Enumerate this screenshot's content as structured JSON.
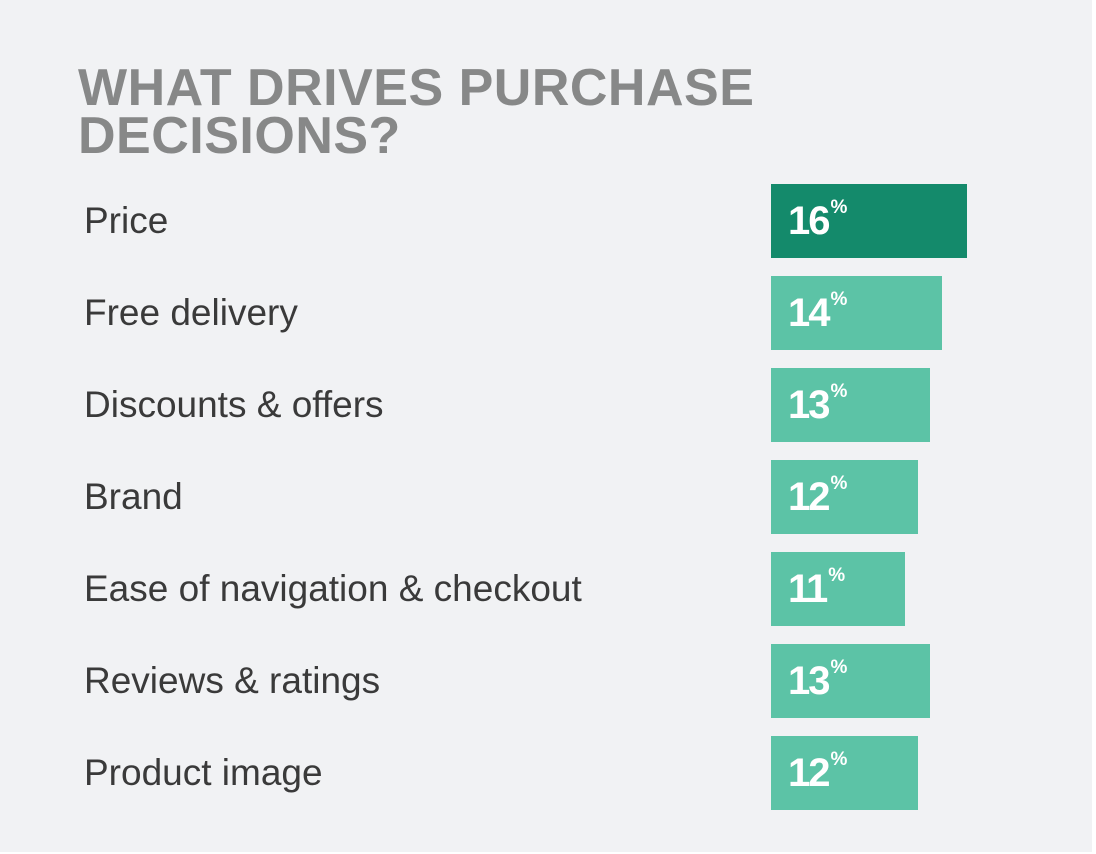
{
  "title_lines": [
    "WHAT DRIVES PURCHASE",
    "DECISIONS?"
  ],
  "colors": {
    "background": "#f1f2f4",
    "title": "#878888",
    "label": "#3a3a3a",
    "bar_highlight": "#148a6b",
    "bar": "#5cc3a6",
    "value_text": "#ffffff"
  },
  "chart_data": {
    "type": "bar",
    "orientation": "horizontal",
    "title": "WHAT DRIVES PURCHASE DECISIONS?",
    "categories": [
      "Price",
      "Free delivery",
      "Discounts & offers",
      "Brand",
      "Ease of navigation & checkout",
      "Reviews & ratings",
      "Product image"
    ],
    "values": [
      16,
      14,
      13,
      12,
      11,
      13,
      12
    ],
    "value_suffix": "%",
    "highlight_index": 0,
    "grid": false,
    "legend": "none"
  }
}
